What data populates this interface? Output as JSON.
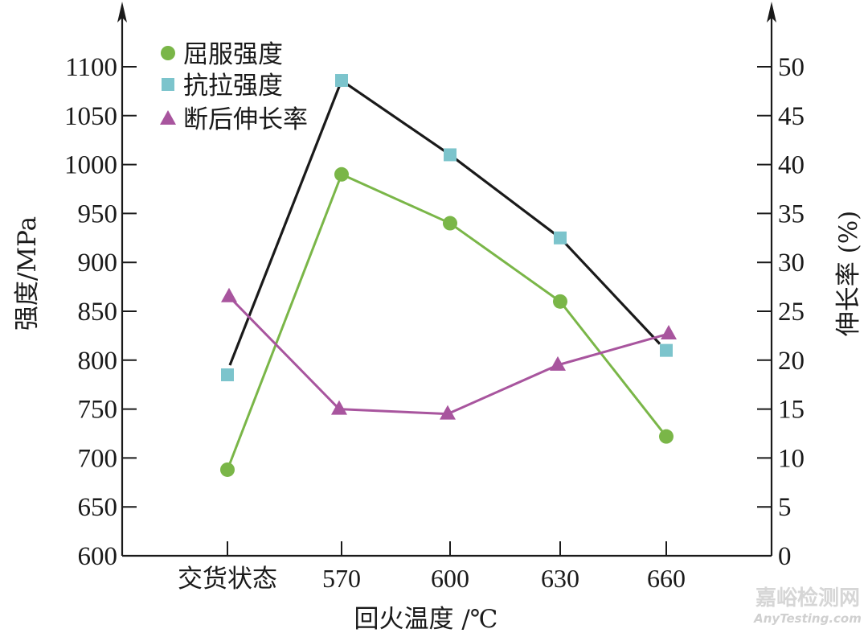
{
  "chart_data": {
    "type": "line",
    "title": "",
    "xlabel": "回火温度 /℃",
    "ylabel": "强度/MPa",
    "y2label": "伸长率 (%)",
    "categories": [
      "交货状态",
      "570",
      "600",
      "630",
      "660"
    ],
    "ylim": [
      600,
      1100
    ],
    "y2lim": [
      0,
      50
    ],
    "yticks": [
      "600",
      "650",
      "700",
      "750",
      "800",
      "850",
      "900",
      "950",
      "1000",
      "1050",
      "1100"
    ],
    "y2ticks": [
      "0",
      "5",
      "10",
      "15",
      "20",
      "25",
      "30",
      "35",
      "40",
      "45",
      "50"
    ],
    "legend_position": "upper-left",
    "grid": false,
    "series": [
      {
        "name": "屈服强度",
        "axis": "left",
        "marker": "circle",
        "color": "#7ab648",
        "line_color": "#7ab648",
        "values": [
          688,
          990,
          940,
          860,
          722
        ]
      },
      {
        "name": "抗拉强度",
        "axis": "left",
        "marker": "square",
        "color": "#7cc4cc",
        "line_color": "#1a1a1a",
        "values": [
          785,
          1086,
          1010,
          925,
          810
        ]
      },
      {
        "name": "断后伸长率",
        "axis": "right",
        "marker": "triangle",
        "color": "#a8559e",
        "line_color": "#a8559e",
        "values": [
          26.5,
          15.0,
          14.5,
          19.5,
          22.7
        ]
      }
    ]
  },
  "legend": {
    "items": [
      {
        "label": "屈服强度"
      },
      {
        "label": "抗拉强度"
      },
      {
        "label": "断后伸长率"
      }
    ]
  },
  "axes": {
    "x_title": "回火温度 /℃",
    "y_left_title": "强度/MPa",
    "y_right_title": "伸长率 (%)"
  },
  "watermark": {
    "cn": "嘉峪检测网",
    "en": "AnyTesting.com"
  }
}
